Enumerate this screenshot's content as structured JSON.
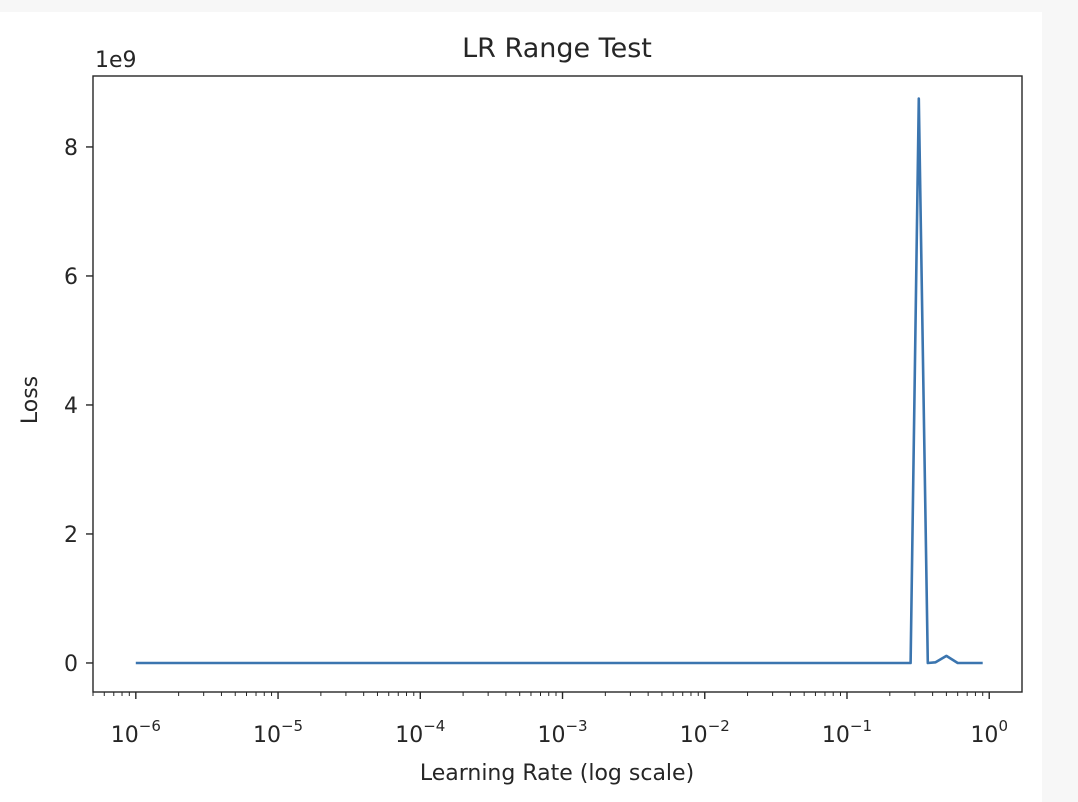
{
  "chart_data": {
    "type": "line",
    "title": "LR Range Test",
    "xlabel": "Learning Rate (log scale)",
    "ylabel": "Loss",
    "y_offset_label": "1e9",
    "xscale": "log",
    "xlim": [
      5e-07,
      1.7
    ],
    "ylim": [
      -0.45,
      9.1
    ],
    "y_unit_multiplier": 1000000000,
    "x_ticks": [
      {
        "base": "10",
        "exp": "−6",
        "value": 1e-06
      },
      {
        "base": "10",
        "exp": "−5",
        "value": 1e-05
      },
      {
        "base": "10",
        "exp": "−4",
        "value": 0.0001
      },
      {
        "base": "10",
        "exp": "−3",
        "value": 0.001
      },
      {
        "base": "10",
        "exp": "−2",
        "value": 0.01
      },
      {
        "base": "10",
        "exp": "−1",
        "value": 0.1
      },
      {
        "base": "10",
        "exp": "0",
        "value": 1
      }
    ],
    "y_ticks": [
      {
        "label": "0",
        "value": 0
      },
      {
        "label": "2",
        "value": 2
      },
      {
        "label": "4",
        "value": 4
      },
      {
        "label": "6",
        "value": 6
      },
      {
        "label": "8",
        "value": 8
      }
    ],
    "grid": false,
    "series": [
      {
        "color": "#3b75af",
        "x": [
          1e-06,
          1e-05,
          0.0001,
          0.001,
          0.01,
          0.1,
          0.28,
          0.32,
          0.37,
          0.42,
          0.5,
          0.6,
          0.9
        ],
        "y": [
          0,
          0,
          0,
          0,
          0,
          0,
          0,
          8.75,
          0,
          0.01,
          0.11,
          0,
          0
        ]
      }
    ]
  }
}
